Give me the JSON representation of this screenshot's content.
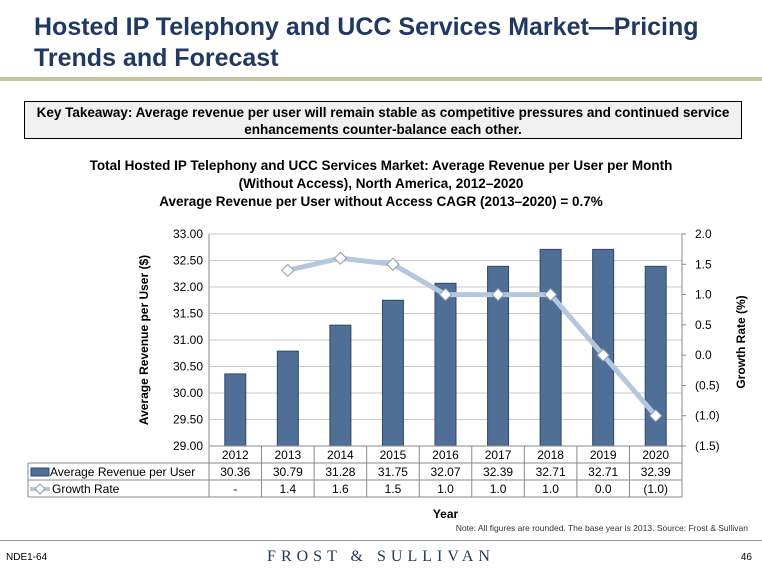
{
  "page": {
    "title": "Hosted IP Telephony and UCC Services Market—Pricing Trends and Forecast",
    "takeaway": "Key Takeaway: Average revenue per user will remain stable as competitive pressures and continued service enhancements counter-balance each other.",
    "note": "Note: All figures are rounded. The base year is 2013. Source: Frost & Sullivan",
    "footer_left": "NDE1-64",
    "footer_brand": "FROST & SULLIVAN",
    "page_number": "46"
  },
  "chart_data": {
    "type": "bar",
    "title_lines": [
      "Total Hosted IP Telephony and UCC Services Market: Average Revenue per User per Month",
      "(Without Access), North America, 2012–2020",
      "Average Revenue per User without Access CAGR (2013–2020) = 0.7%"
    ],
    "xlabel": "Year",
    "ylabel": "Average Revenue per User ($)",
    "y2label": "Growth Rate (%)",
    "categories": [
      "2012",
      "2013",
      "2014",
      "2015",
      "2016",
      "2017",
      "2018",
      "2019",
      "2020"
    ],
    "ylim": [
      29.0,
      33.0
    ],
    "yticks": [
      "29.00",
      "29.50",
      "30.00",
      "30.50",
      "31.00",
      "31.50",
      "32.00",
      "32.50",
      "33.00"
    ],
    "y2lim": [
      -1.5,
      2.0
    ],
    "y2ticks": [
      "(1.5)",
      "(1.0)",
      "(0.5)",
      "0.0",
      "0.5",
      "1.0",
      "1.5",
      "2.0"
    ],
    "grid": true,
    "series": [
      {
        "name": "Average Revenue per User",
        "kind": "bar",
        "axis": "left",
        "values": [
          30.36,
          30.79,
          31.28,
          31.75,
          32.07,
          32.39,
          32.71,
          32.71,
          32.39
        ],
        "labels": [
          "30.36",
          "30.79",
          "31.28",
          "31.75",
          "32.07",
          "32.39",
          "32.71",
          "32.71",
          "32.39"
        ]
      },
      {
        "name": "Growth Rate",
        "kind": "line",
        "axis": "right",
        "values": [
          null,
          1.4,
          1.6,
          1.5,
          1.0,
          1.0,
          1.0,
          0.0,
          -1.0
        ],
        "labels": [
          "-",
          "1.4",
          "1.6",
          "1.5",
          "1.0",
          "1.0",
          "1.0",
          "0.0",
          "(1.0)"
        ]
      }
    ],
    "colors": {
      "bar": "#4f6f96",
      "bar_edge": "#2f4a6b",
      "line": "#b4c7dc",
      "marker": "#ffffff",
      "grid": "#c8c8c8"
    }
  }
}
